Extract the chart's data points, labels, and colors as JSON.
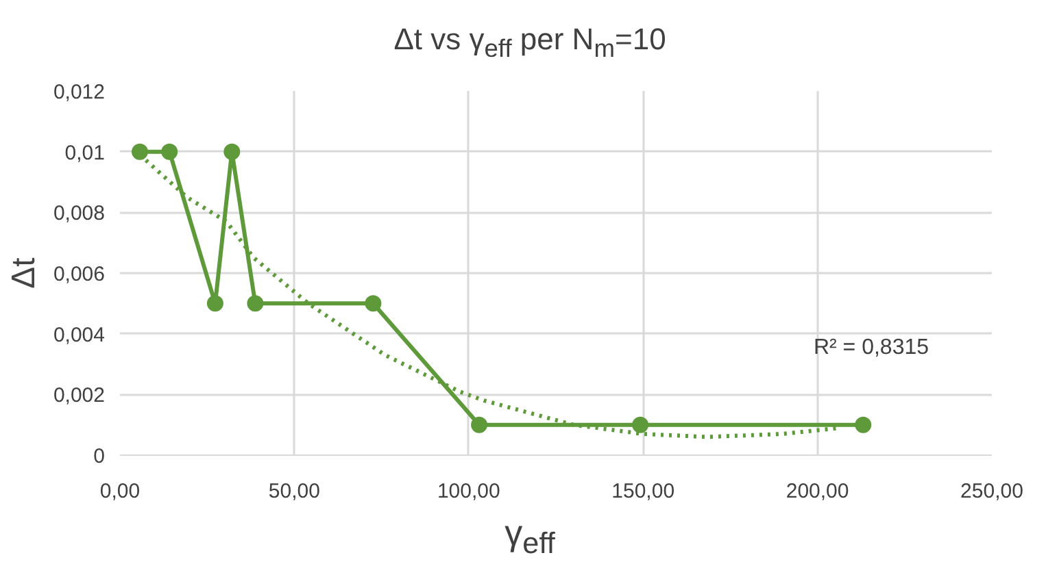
{
  "chart_data": {
    "type": "line",
    "title": "Δt vs γ$_{eff}$ per N$_{m}$=10",
    "xlabel": "γ$_{eff}$",
    "ylabel": "Δt",
    "x": [
      5.7,
      14.2,
      27.3,
      32.1,
      38.8,
      72.6,
      103.0,
      149.2,
      213.1
    ],
    "series": [
      {
        "color": "#5e9a3a",
        "values": [
          0.01,
          0.01,
          0.005,
          0.01,
          0.005,
          0.005,
          0.001,
          0.001,
          0.001
        ],
        "marker": "circle",
        "line_style": "solid"
      },
      {
        "type": "line",
        "color": "#5e9a3a",
        "x": [
          5.7,
          19.2,
          30.5,
          38.4,
          54,
          76,
          97.3,
          104.4,
          130,
          150,
          168.4,
          190,
          206.7
        ],
        "values": [
          0.0099,
          0.0085,
          0.0077,
          0.0065,
          0.005,
          0.0033,
          0.0021,
          0.0018,
          0.001,
          0.0007,
          0.0006,
          0.0007,
          0.0009
        ],
        "marker": "none",
        "line_style": "dotted"
      }
    ],
    "annotations": [
      "R² = 0,8315"
    ],
    "xlim": [
      0,
      250
    ],
    "ylim": [
      0,
      0.012
    ],
    "xticks": [
      {
        "value": 0,
        "label": "0,00"
      },
      {
        "value": 50,
        "label": "50,00"
      },
      {
        "value": 100,
        "label": "100,00"
      },
      {
        "value": 150,
        "label": "150,00"
      },
      {
        "value": 200,
        "label": "200,00"
      },
      {
        "value": 250,
        "label": "250,00"
      }
    ],
    "yticks": [
      0,
      {
        "value": 0.002,
        "label": "0,002"
      },
      {
        "value": 0.004,
        "label": "0,004"
      },
      {
        "value": 0.006,
        "label": "0,006"
      },
      {
        "value": 0.008,
        "label": "0,008"
      },
      {
        "value": 0.01,
        "label": "0,01"
      },
      {
        "value": 0.012,
        "label": "0,012"
      }
    ],
    "grid": true
  }
}
